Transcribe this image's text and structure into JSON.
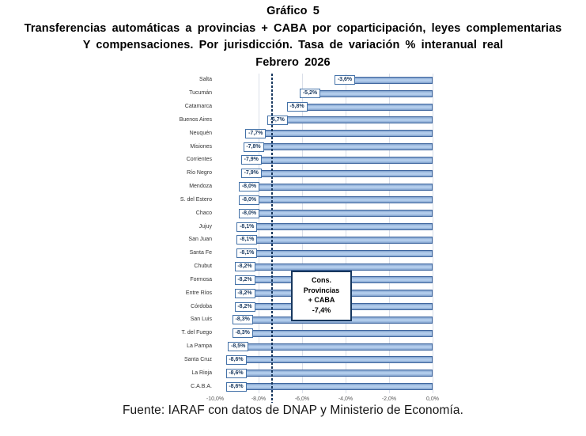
{
  "header": {
    "line1": "Gráfico 5",
    "line2": "Transferencias automáticas a provincias + CABA por coparticipación, leyes complementarias",
    "line3": "Y compensaciones. Por jurisdicción. Tasa de variación % interanual real",
    "line4": "Febrero 2026"
  },
  "footer": {
    "source": "Fuente: IARAF con datos de DNAP y Ministerio de Economía."
  },
  "chart_data": {
    "type": "bar",
    "orientation": "horizontal",
    "title": "Transferencias automáticas a provincias + CABA por coparticipación, leyes complementarias y compensaciones. Por jurisdicción. Tasa de variación % interanual real. Febrero 2026",
    "categories": [
      "Salta",
      "Tucumán",
      "Catamarca",
      "Buenos Aires",
      "Neuquén",
      "Misiones",
      "Corrientes",
      "Río Negro",
      "Mendoza",
      "S. del Estero",
      "Chaco",
      "Jujuy",
      "San Juan",
      "Santa Fe",
      "Chubut",
      "Formosa",
      "Entre Ríos",
      "Córdoba",
      "San Luis",
      "T. del Fuego",
      "La Pampa",
      "Santa Cruz",
      "La Rioja",
      "C.A.B.A."
    ],
    "values": [
      -3.6,
      -5.2,
      -5.8,
      -6.7,
      -7.7,
      -7.8,
      -7.9,
      -7.9,
      -8.0,
      -8.0,
      -8.0,
      -8.1,
      -8.1,
      -8.1,
      -8.2,
      -8.2,
      -8.2,
      -8.2,
      -8.3,
      -8.3,
      -8.5,
      -8.6,
      -8.6,
      -8.6
    ],
    "value_labels": [
      "-3,6%",
      "-5,2%",
      "-5,8%",
      "-6,7%",
      "-7,7%",
      "-7,8%",
      "-7,9%",
      "-7,9%",
      "-8,0%",
      "-8,0%",
      "-8,0%",
      "-8,1%",
      "-8,1%",
      "-8,1%",
      "-8,2%",
      "-8,2%",
      "-8,2%",
      "-8,2%",
      "-8,3%",
      "-8,3%",
      "-8,5%",
      "-8,6%",
      "-8,6%",
      "-8,6%"
    ],
    "xlim": [
      -10,
      0
    ],
    "x_ticks": [
      {
        "value": -10,
        "label": "-10,0%"
      },
      {
        "value": -8,
        "label": "-8,0%"
      },
      {
        "value": -6,
        "label": "-6,0%"
      },
      {
        "value": -4,
        "label": "-4,0%"
      },
      {
        "value": -2,
        "label": "-2,0%"
      },
      {
        "value": 0,
        "label": "0,0%"
      }
    ],
    "grid": true,
    "legend": "none",
    "reference_line": {
      "value": -7.4,
      "style": "dashed"
    },
    "annotation": {
      "line1": "Cons. Provincias",
      "line2": "+ CABA",
      "line3": "-7,4%"
    },
    "colors": {
      "bar_fill_light": "#b3cdec",
      "bar_fill_dark": "#7e9fcb",
      "bar_border": "#40679F",
      "label_box_border": "#4472A8",
      "navy": "#17375E",
      "gridline": "#dadfe9"
    }
  }
}
